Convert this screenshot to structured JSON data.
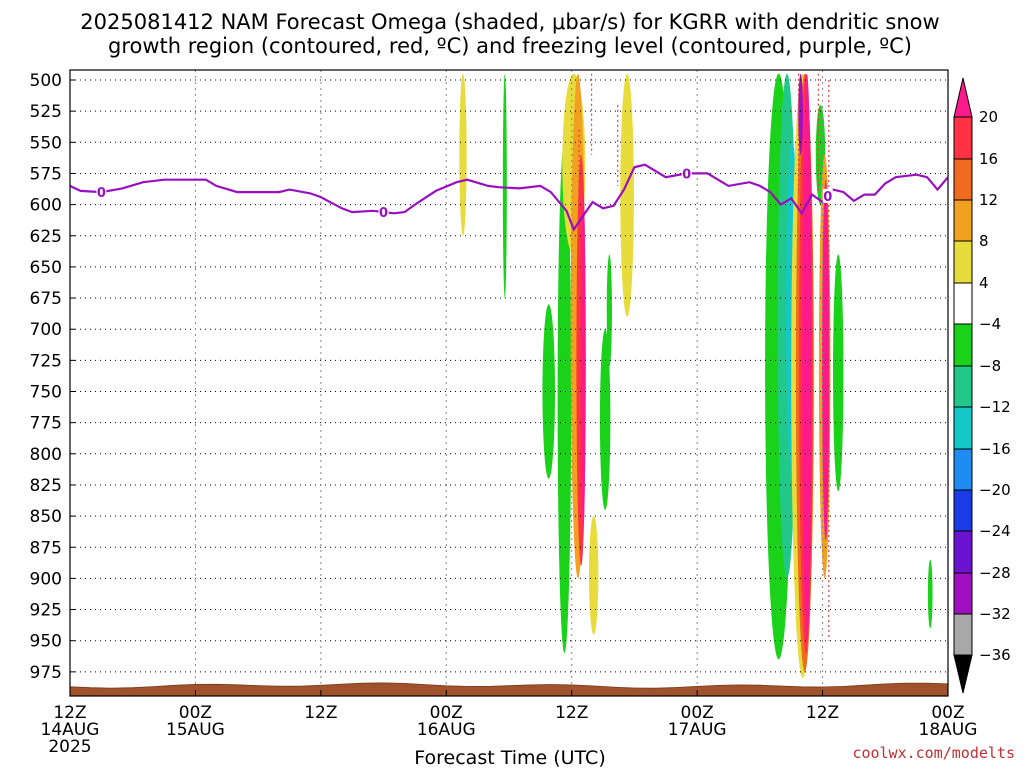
{
  "chart_data": {
    "type": "heatmap",
    "title_line1": "2025081412 NAM Forecast Omega (shaded, μbar/s) for KGRR with dendritic snow",
    "title_line2": "growth region (contoured, red, ºC) and freezing level (contoured, purple, ºC)",
    "xlabel": "Forecast Time (UTC)",
    "ylabel": "",
    "credit": "coolwx.com/modelts",
    "y_axis": {
      "unit": "hPa",
      "ylim": [
        990,
        495
      ],
      "ticks": [
        500,
        525,
        550,
        575,
        600,
        625,
        650,
        675,
        700,
        725,
        750,
        775,
        800,
        825,
        850,
        875,
        900,
        925,
        950,
        975
      ]
    },
    "x_axis": {
      "unit": "forecast hour",
      "xlim": [
        0,
        84
      ],
      "ticks": [
        {
          "hour": 0,
          "line1": "12Z",
          "line2": "14AUG",
          "line3": "2025"
        },
        {
          "hour": 12,
          "line1": "00Z",
          "line2": "15AUG",
          "line3": ""
        },
        {
          "hour": 24,
          "line1": "12Z",
          "line2": "",
          "line3": ""
        },
        {
          "hour": 36,
          "line1": "00Z",
          "line2": "16AUG",
          "line3": ""
        },
        {
          "hour": 48,
          "line1": "12Z",
          "line2": "",
          "line3": ""
        },
        {
          "hour": 60,
          "line1": "00Z",
          "line2": "17AUG",
          "line3": ""
        },
        {
          "hour": 72,
          "line1": "12Z",
          "line2": "",
          "line3": ""
        },
        {
          "hour": 84,
          "line1": "00Z",
          "line2": "18AUG",
          "line3": ""
        }
      ]
    },
    "grid": true,
    "colorbar": {
      "labels": [
        "20",
        "16",
        "12",
        "8",
        "4",
        "−4",
        "−8",
        "−12",
        "−16",
        "−20",
        "−24",
        "−28",
        "−32",
        "−36"
      ],
      "bands": [
        {
          "lo": 20,
          "hi": 99,
          "color": "#ff1a8c"
        },
        {
          "lo": 16,
          "hi": 20,
          "color": "#ff3344"
        },
        {
          "lo": 12,
          "hi": 16,
          "color": "#f06a20"
        },
        {
          "lo": 8,
          "hi": 12,
          "color": "#f2a020"
        },
        {
          "lo": 4,
          "hi": 8,
          "color": "#e8dc3c"
        },
        {
          "lo": -4,
          "hi": 4,
          "color": "#ffffff"
        },
        {
          "lo": -8,
          "hi": -4,
          "color": "#19d219"
        },
        {
          "lo": -12,
          "hi": -8,
          "color": "#22c88a"
        },
        {
          "lo": -16,
          "hi": -12,
          "color": "#14c8c8"
        },
        {
          "lo": -20,
          "hi": -16,
          "color": "#1e8cf0"
        },
        {
          "lo": -24,
          "hi": -20,
          "color": "#1a3ce6"
        },
        {
          "lo": -28,
          "hi": -24,
          "color": "#6a14d2"
        },
        {
          "lo": -32,
          "hi": -28,
          "color": "#a010c0"
        },
        {
          "lo": -36,
          "hi": -32,
          "color": "#a8a8a8"
        },
        {
          "lo": -99,
          "hi": -36,
          "color": "#000000"
        }
      ]
    },
    "omega_features": [
      {
        "x": 37.6,
        "w": 0.7,
        "p_top": 495,
        "p_bot": 625,
        "value": 5
      },
      {
        "x": 41.6,
        "w": 0.35,
        "p_top": 495,
        "p_bot": 675,
        "value": -5
      },
      {
        "x": 45.8,
        "w": 1.2,
        "p_top": 680,
        "p_bot": 820,
        "value": -6
      },
      {
        "x": 47.3,
        "w": 1.3,
        "p_top": 550,
        "p_bot": 960,
        "value": -6
      },
      {
        "x": 48.2,
        "w": 2.2,
        "p_top": 495,
        "p_bot": 640,
        "value": 6
      },
      {
        "x": 48.6,
        "w": 1.4,
        "p_top": 495,
        "p_bot": 900,
        "value": 10
      },
      {
        "x": 48.9,
        "w": 0.9,
        "p_top": 560,
        "p_bot": 890,
        "value": 16
      },
      {
        "x": 49.1,
        "w": 0.45,
        "p_top": 590,
        "p_bot": 860,
        "value": 22
      },
      {
        "x": 50.1,
        "w": 0.9,
        "p_top": 850,
        "p_bot": 945,
        "value": 5
      },
      {
        "x": 51.2,
        "w": 1.0,
        "p_top": 700,
        "p_bot": 845,
        "value": -6
      },
      {
        "x": 51.6,
        "w": 0.5,
        "p_top": 640,
        "p_bot": 730,
        "value": -6
      },
      {
        "x": 53.3,
        "w": 1.3,
        "p_top": 495,
        "p_bot": 690,
        "value": 5
      },
      {
        "x": 67.8,
        "w": 2.6,
        "p_top": 495,
        "p_bot": 965,
        "value": -6
      },
      {
        "x": 68.6,
        "w": 1.8,
        "p_top": 495,
        "p_bot": 900,
        "value": -10
      },
      {
        "x": 69.1,
        "w": 1.2,
        "p_top": 550,
        "p_bot": 820,
        "value": -14
      },
      {
        "x": 69.4,
        "w": 0.7,
        "p_top": 650,
        "p_bot": 800,
        "value": -18
      },
      {
        "x": 70.1,
        "w": 2.2,
        "p_top": 495,
        "p_bot": 980,
        "value": 6
      },
      {
        "x": 70.3,
        "w": 1.7,
        "p_top": 495,
        "p_bot": 975,
        "value": 12
      },
      {
        "x": 70.4,
        "w": 1.3,
        "p_top": 495,
        "p_bot": 960,
        "value": 18
      },
      {
        "x": 70.5,
        "w": 0.9,
        "p_top": 495,
        "p_bot": 950,
        "value": 22
      },
      {
        "x": 69.9,
        "w": 0.45,
        "p_top": 495,
        "p_bot": 560,
        "value": -30
      },
      {
        "x": 71.8,
        "w": 0.9,
        "p_top": 520,
        "p_bot": 600,
        "value": -6
      },
      {
        "x": 72.2,
        "w": 1.1,
        "p_top": 560,
        "p_bot": 900,
        "value": 8
      },
      {
        "x": 72.3,
        "w": 0.7,
        "p_top": 580,
        "p_bot": 870,
        "value": 20
      },
      {
        "x": 73.5,
        "w": 1.0,
        "p_top": 640,
        "p_bot": 830,
        "value": -6
      },
      {
        "x": 82.3,
        "w": 0.45,
        "p_top": 885,
        "p_bot": 940,
        "value": -6
      }
    ],
    "dendritic_contours": [
      {
        "x": 48.7,
        "p_top": 540,
        "p_bot": 600
      },
      {
        "x": 49.9,
        "p_top": 495,
        "p_bot": 560
      },
      {
        "x": 52.4,
        "p_top": 520,
        "p_bot": 585
      },
      {
        "x": 69.7,
        "p_top": 495,
        "p_bot": 590
      },
      {
        "x": 71.6,
        "p_top": 495,
        "p_bot": 590
      },
      {
        "x": 72.6,
        "p_top": 500,
        "p_bot": 950
      }
    ],
    "freezing_level": {
      "label": "0",
      "label_hours": [
        3,
        30,
        59,
        72.5
      ],
      "points": [
        [
          0,
          585
        ],
        [
          1,
          589
        ],
        [
          3,
          590
        ],
        [
          5,
          587
        ],
        [
          7,
          582
        ],
        [
          9,
          580
        ],
        [
          13,
          580
        ],
        [
          14,
          585
        ],
        [
          16,
          590
        ],
        [
          20,
          590
        ],
        [
          21,
          588
        ],
        [
          23,
          591
        ],
        [
          24,
          594
        ],
        [
          26,
          603
        ],
        [
          27,
          606
        ],
        [
          29,
          605
        ],
        [
          31,
          607
        ],
        [
          32,
          606
        ],
        [
          33,
          600
        ],
        [
          35,
          589
        ],
        [
          37,
          582
        ],
        [
          38,
          580
        ],
        [
          40,
          585
        ],
        [
          41,
          586
        ],
        [
          43,
          587
        ],
        [
          45,
          585
        ],
        [
          46,
          590
        ],
        [
          47.5,
          605
        ],
        [
          48.2,
          620
        ],
        [
          49,
          610
        ],
        [
          50,
          598
        ],
        [
          51,
          603
        ],
        [
          52,
          601
        ],
        [
          53,
          588
        ],
        [
          54,
          570
        ],
        [
          55,
          568
        ],
        [
          57,
          578
        ],
        [
          59,
          575
        ],
        [
          61,
          575
        ],
        [
          62,
          580
        ],
        [
          63,
          585
        ],
        [
          65,
          582
        ],
        [
          66,
          585
        ],
        [
          67,
          590
        ],
        [
          68,
          600
        ],
        [
          69,
          595
        ],
        [
          70,
          607
        ],
        [
          71,
          592
        ],
        [
          72,
          598
        ],
        [
          73,
          588
        ],
        [
          74,
          590
        ],
        [
          75,
          597
        ],
        [
          76,
          592
        ],
        [
          77,
          592
        ],
        [
          78,
          583
        ],
        [
          79,
          578
        ],
        [
          81,
          576
        ],
        [
          82,
          578
        ],
        [
          83,
          588
        ],
        [
          84,
          578
        ]
      ]
    },
    "terrain_top_hPa": 986
  }
}
